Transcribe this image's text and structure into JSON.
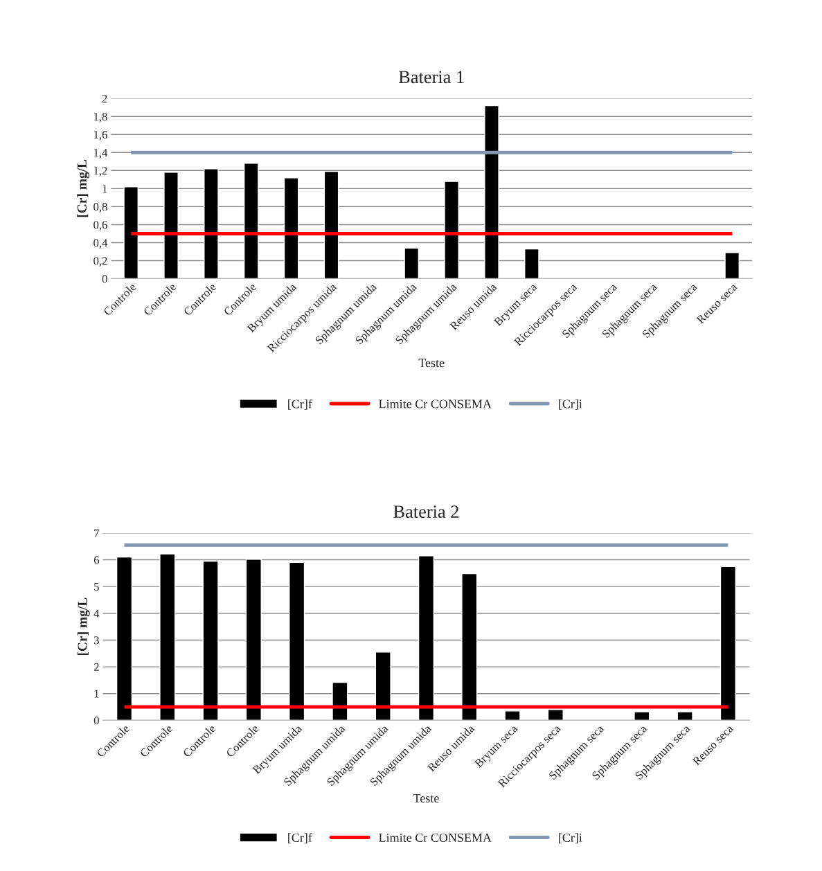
{
  "chart_data": [
    {
      "type": "bar",
      "title": "Bateria 1",
      "xlabel": "Teste",
      "ylabel": "[Cr] mg/L",
      "categories": [
        "Controle",
        "Controle",
        "Controle",
        "Controle",
        "Bryum umida",
        "Ricciocarpos umida",
        "Sphagnum umida",
        "Sphagnum umida",
        "Sphagnum umida",
        "Reuso umida",
        "Bryum seca",
        "Ricciocarpos seca",
        "Sphagnum seca",
        "Sphagnum seca",
        "Sphagnum seca",
        "Reuso seca"
      ],
      "series": [
        {
          "name": "[Cr]f",
          "color": "#000000",
          "values": [
            1.02,
            1.18,
            1.22,
            1.28,
            1.12,
            1.19,
            null,
            0.34,
            1.08,
            1.92,
            0.33,
            null,
            null,
            null,
            null,
            0.29
          ]
        },
        {
          "name": "Limite Cr CONSEMA",
          "type": "line",
          "color": "#ff0000",
          "values": [
            0.5,
            0.5,
            0.5,
            0.5,
            0.5,
            0.5,
            0.5,
            0.5,
            0.5,
            0.5,
            0.5,
            0.5,
            0.5,
            0.5,
            0.5,
            0.5
          ]
        },
        {
          "name": "[Cr]i",
          "type": "line",
          "color": "#8497b0",
          "values": [
            1.4,
            1.4,
            1.4,
            1.4,
            1.4,
            1.4,
            1.4,
            1.4,
            1.4,
            1.4,
            1.4,
            1.4,
            1.4,
            1.4,
            1.4,
            1.4
          ]
        }
      ],
      "ylim": [
        0,
        2
      ],
      "yticks": [
        0,
        {
          "value": 0.2,
          "label": "0,2"
        },
        {
          "value": 0.4,
          "label": "0,4"
        },
        {
          "value": 0.6,
          "label": "0,6"
        },
        {
          "value": 0.8,
          "label": "0,8"
        },
        1,
        {
          "value": 1.2,
          "label": "1,2"
        },
        {
          "value": 1.4,
          "label": "1,4"
        },
        {
          "value": 1.6,
          "label": "1,6"
        },
        {
          "value": 1.8,
          "label": "1,8"
        },
        2
      ],
      "grid": "y",
      "legend": "bottom"
    },
    {
      "type": "bar",
      "title": "Bateria 2",
      "xlabel": "Teste",
      "ylabel": "[Cr] mg/L",
      "categories": [
        "Controle",
        "Controle",
        "Controle",
        "Controle",
        "Bryum umida",
        "Sphagnum umida",
        "Sphagnum umida",
        "Sphagnum umida",
        "Reuso umida",
        "Bryum seca",
        "Ricciocarpos seca",
        "Sphagnum seca",
        "Sphagnum seca",
        "Sphagnum seca",
        "Reuso seca"
      ],
      "series": [
        {
          "name": "[Cr]f",
          "color": "#000000",
          "values": [
            6.1,
            6.22,
            5.95,
            6.02,
            5.9,
            1.42,
            2.55,
            6.15,
            5.48,
            0.35,
            0.4,
            null,
            0.32,
            0.32,
            5.75
          ]
        },
        {
          "name": "Limite Cr CONSEMA",
          "type": "line",
          "color": "#ff0000",
          "values": [
            0.5,
            0.5,
            0.5,
            0.5,
            0.5,
            0.5,
            0.5,
            0.5,
            0.5,
            0.5,
            0.5,
            0.5,
            0.5,
            0.5,
            0.5
          ]
        },
        {
          "name": "[Cr]i",
          "type": "line",
          "color": "#8497b0",
          "values": [
            6.55,
            6.55,
            6.55,
            6.55,
            6.55,
            6.55,
            6.55,
            6.55,
            6.55,
            6.55,
            6.55,
            6.55,
            6.55,
            6.55,
            6.55
          ]
        }
      ],
      "ylim": [
        0,
        7
      ],
      "yticks": [
        0,
        1,
        2,
        3,
        4,
        5,
        6,
        7
      ],
      "grid": "y",
      "legend": "bottom"
    }
  ]
}
